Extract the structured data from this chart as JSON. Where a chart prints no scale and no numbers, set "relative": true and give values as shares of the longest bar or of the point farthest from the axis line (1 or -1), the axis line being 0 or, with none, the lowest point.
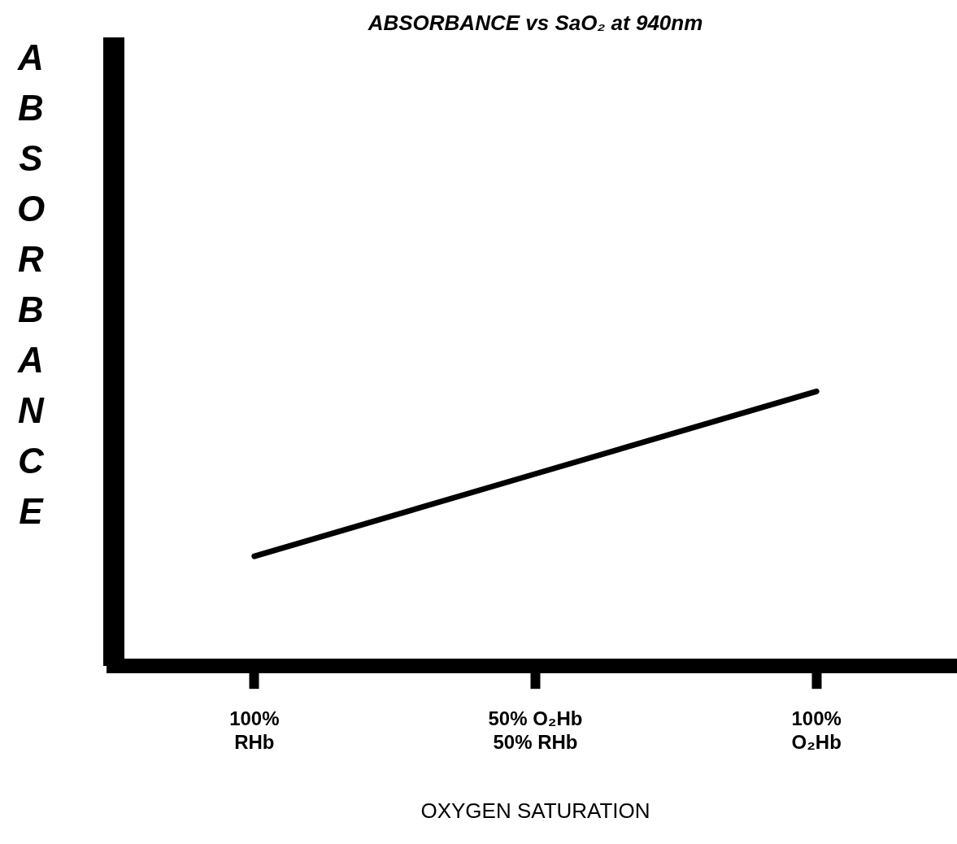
{
  "chart_data": {
    "type": "line",
    "title": "ABSORBANCE vs SaO₂ at 940nm",
    "xlabel": "OXYGEN SATURATION",
    "ylabel": "ABSORBANCE",
    "categories": [
      "100%\nRHb",
      "50% O₂Hb\n50% RHb",
      "100%\nO₂Hb"
    ],
    "relative": true,
    "series": [
      {
        "color": "#000000",
        "values": [
          0.4,
          0.7,
          1
        ]
      }
    ],
    "marker": "none",
    "line_style": "solid",
    "grid": false,
    "legend": false
  }
}
